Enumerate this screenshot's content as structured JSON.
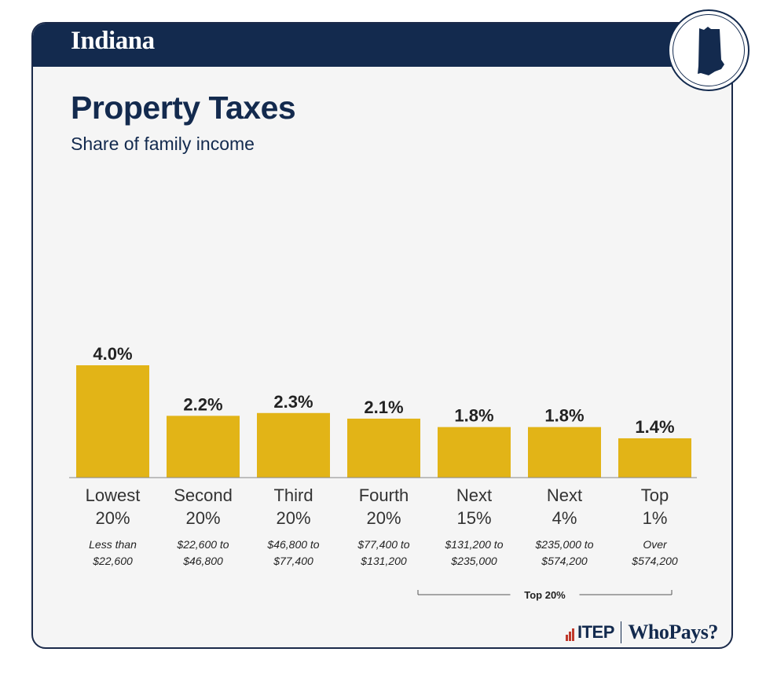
{
  "header": {
    "state": "Indiana"
  },
  "footer": {
    "org": "ITEP",
    "product": "WhoPays?"
  },
  "chart_data": {
    "type": "bar",
    "title": "Property Taxes",
    "subtitle": "Share of family income",
    "categories": [
      {
        "line1": "Lowest",
        "line2": "20%",
        "range1": "Less than",
        "range2": "$22,600"
      },
      {
        "line1": "Second",
        "line2": "20%",
        "range1": "$22,600 to",
        "range2": "$46,800"
      },
      {
        "line1": "Third",
        "line2": "20%",
        "range1": "$46,800 to",
        "range2": "$77,400"
      },
      {
        "line1": "Fourth",
        "line2": "20%",
        "range1": "$77,400 to",
        "range2": "$131,200"
      },
      {
        "line1": "Next",
        "line2": "15%",
        "range1": "$131,200 to",
        "range2": "$235,000"
      },
      {
        "line1": "Next",
        "line2": "4%",
        "range1": "$235,000 to",
        "range2": "$574,200"
      },
      {
        "line1": "Top",
        "line2": "1%",
        "range1": "Over",
        "range2": "$574,200"
      }
    ],
    "values": [
      4.0,
      2.2,
      2.3,
      2.1,
      1.8,
      1.8,
      1.4
    ],
    "value_labels": [
      "4.0%",
      "2.2%",
      "2.3%",
      "2.1%",
      "1.8%",
      "1.8%",
      "1.4%"
    ],
    "bracket_label": "Top 20%",
    "ylim": [
      0,
      4.0
    ],
    "grid": false,
    "bar_color": "#e2b417",
    "text_color": "#222222"
  }
}
